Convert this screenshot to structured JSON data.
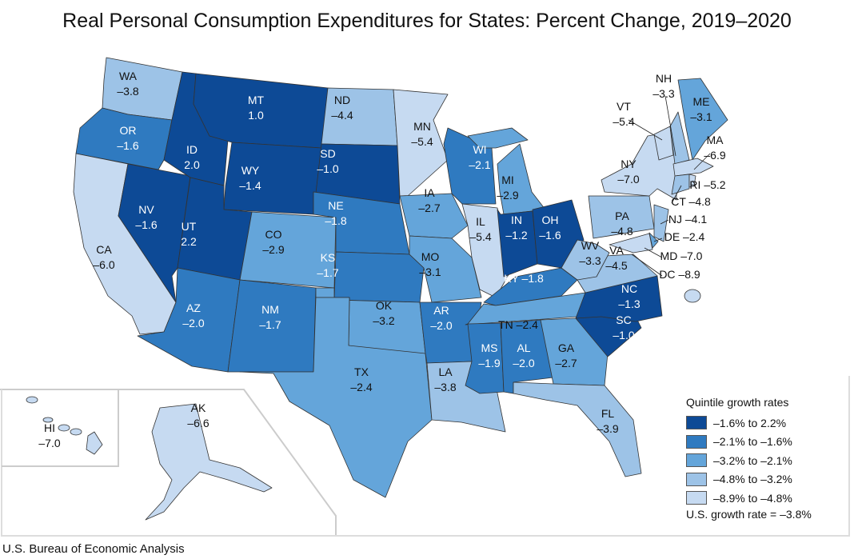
{
  "title": "Real Personal Consumption Expenditures for States: Percent Change, 2019–2020",
  "source": "U.S. Bureau of Economic Analysis",
  "legend": {
    "title": "Quintile growth rates",
    "items": [
      {
        "label": "–1.6% to 2.2%",
        "color": "#0d4a96"
      },
      {
        "label": "–2.1% to –1.6%",
        "color": "#2f7ac0"
      },
      {
        "label": "–3.2% to –2.1%",
        "color": "#64a5da"
      },
      {
        "label": "–4.8% to –3.2%",
        "color": "#9dc3e7"
      },
      {
        "label": "–8.9% to –4.8%",
        "color": "#c6daf1"
      }
    ],
    "us_rate": "U.S. growth rate = –3.8%"
  },
  "states": [
    {
      "abbr": "WA",
      "value": "–3.8",
      "quintile": 4
    },
    {
      "abbr": "OR",
      "value": "–1.6",
      "quintile": 2
    },
    {
      "abbr": "CA",
      "value": "–6.0",
      "quintile": 5
    },
    {
      "abbr": "NV",
      "value": "–1.6",
      "quintile": 1
    },
    {
      "abbr": "ID",
      "value": "2.0",
      "quintile": 1
    },
    {
      "abbr": "MT",
      "value": "1.0",
      "quintile": 1
    },
    {
      "abbr": "WY",
      "value": "–1.4",
      "quintile": 1
    },
    {
      "abbr": "UT",
      "value": "2.2",
      "quintile": 1
    },
    {
      "abbr": "CO",
      "value": "–2.9",
      "quintile": 3
    },
    {
      "abbr": "AZ",
      "value": "–2.0",
      "quintile": 2
    },
    {
      "abbr": "NM",
      "value": "–1.7",
      "quintile": 2
    },
    {
      "abbr": "ND",
      "value": "–4.4",
      "quintile": 4
    },
    {
      "abbr": "SD",
      "value": "–1.0",
      "quintile": 1
    },
    {
      "abbr": "NE",
      "value": "–1.8",
      "quintile": 2
    },
    {
      "abbr": "KS",
      "value": "–1.7",
      "quintile": 2
    },
    {
      "abbr": "OK",
      "value": "–3.2",
      "quintile": 3
    },
    {
      "abbr": "TX",
      "value": "–2.4",
      "quintile": 3
    },
    {
      "abbr": "MN",
      "value": "–5.4",
      "quintile": 5
    },
    {
      "abbr": "IA",
      "value": "–2.7",
      "quintile": 3
    },
    {
      "abbr": "MO",
      "value": "–3.1",
      "quintile": 3
    },
    {
      "abbr": "AR",
      "value": "–2.0",
      "quintile": 2
    },
    {
      "abbr": "LA",
      "value": "–3.8",
      "quintile": 4
    },
    {
      "abbr": "WI",
      "value": "–2.1",
      "quintile": 2
    },
    {
      "abbr": "IL",
      "value": "–5.4",
      "quintile": 5
    },
    {
      "abbr": "MI",
      "value": "–2.9",
      "quintile": 3
    },
    {
      "abbr": "IN",
      "value": "–1.2",
      "quintile": 1
    },
    {
      "abbr": "OH",
      "value": "–1.6",
      "quintile": 1
    },
    {
      "abbr": "KY",
      "value": "–1.8",
      "quintile": 2
    },
    {
      "abbr": "TN",
      "value": "–2.4",
      "quintile": 3
    },
    {
      "abbr": "MS",
      "value": "–1.9",
      "quintile": 2
    },
    {
      "abbr": "AL",
      "value": "–2.0",
      "quintile": 2
    },
    {
      "abbr": "GA",
      "value": "–2.7",
      "quintile": 3
    },
    {
      "abbr": "FL",
      "value": "–3.9",
      "quintile": 4
    },
    {
      "abbr": "SC",
      "value": "–1.0",
      "quintile": 1
    },
    {
      "abbr": "NC",
      "value": "–1.3",
      "quintile": 1
    },
    {
      "abbr": "VA",
      "value": "–4.5",
      "quintile": 4
    },
    {
      "abbr": "WV",
      "value": "–3.3",
      "quintile": 4
    },
    {
      "abbr": "PA",
      "value": "–4.8",
      "quintile": 4
    },
    {
      "abbr": "NY",
      "value": "–7.0",
      "quintile": 5
    },
    {
      "abbr": "VT",
      "value": "–5.4",
      "quintile": 5
    },
    {
      "abbr": "NH",
      "value": "–3.3",
      "quintile": 4
    },
    {
      "abbr": "ME",
      "value": "–3.1",
      "quintile": 3
    },
    {
      "abbr": "MA",
      "value": "–6.9",
      "quintile": 5
    },
    {
      "abbr": "RI",
      "value": "–5.2",
      "quintile": 5
    },
    {
      "abbr": "CT",
      "value": "–4.8",
      "quintile": 4
    },
    {
      "abbr": "NJ",
      "value": "–4.1",
      "quintile": 4
    },
    {
      "abbr": "DE",
      "value": "–2.4",
      "quintile": 3
    },
    {
      "abbr": "MD",
      "value": "–7.0",
      "quintile": 5
    },
    {
      "abbr": "DC",
      "value": "–8.9",
      "quintile": 5
    },
    {
      "abbr": "AK",
      "value": "–6.6",
      "quintile": 5
    },
    {
      "abbr": "HI",
      "value": "–7.0",
      "quintile": 5
    }
  ]
}
